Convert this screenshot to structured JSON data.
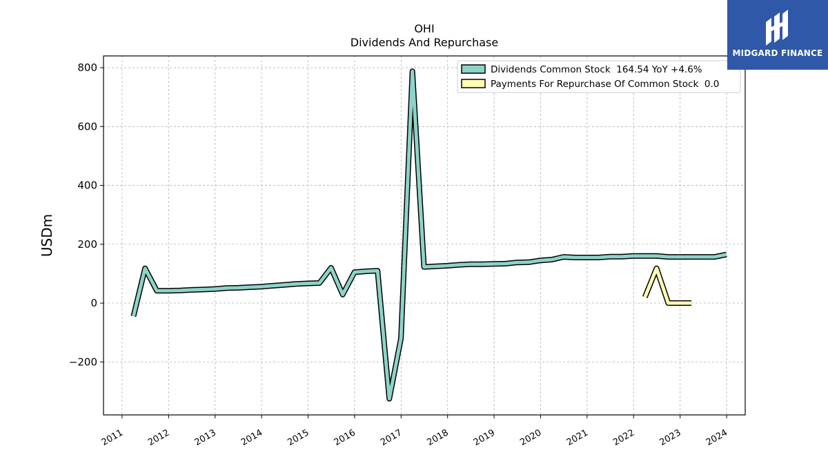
{
  "chart_data": {
    "type": "line",
    "title": "OHI",
    "subtitle": "Dividends And Repurchase",
    "ylabel": "USDm",
    "xlabel": "",
    "ylim": [
      -380,
      840
    ],
    "xlim": [
      2010.6,
      2024.4
    ],
    "yticks": [
      -200,
      0,
      200,
      400,
      600,
      800
    ],
    "ytick_labels": [
      "−200",
      "0",
      "200",
      "400",
      "600",
      "800"
    ],
    "xticks": [
      2011,
      2012,
      2013,
      2014,
      2015,
      2016,
      2017,
      2018,
      2019,
      2020,
      2021,
      2022,
      2023,
      2024
    ],
    "xtick_labels": [
      "2011",
      "2012",
      "2013",
      "2014",
      "2015",
      "2016",
      "2017",
      "2018",
      "2019",
      "2020",
      "2021",
      "2022",
      "2023",
      "2024"
    ],
    "grid": true,
    "legend_position": "top-right",
    "series": [
      {
        "name": "Dividends Common Stock  164.54 YoY +4.6%",
        "color": "#8dd3c7",
        "x": [
          "2011-03-31",
          "2011-06-30",
          "2011-09-30",
          "2011-12-31",
          "2012-03-31",
          "2012-06-30",
          "2012-09-30",
          "2012-12-31",
          "2013-03-31",
          "2013-06-30",
          "2013-09-30",
          "2013-12-31",
          "2014-03-31",
          "2014-06-30",
          "2014-09-30",
          "2014-12-31",
          "2015-03-31",
          "2015-06-30",
          "2015-09-30",
          "2015-12-31",
          "2016-03-31",
          "2016-06-30",
          "2016-09-30",
          "2016-12-31",
          "2017-03-31",
          "2017-06-30",
          "2017-09-30",
          "2017-12-31",
          "2018-03-31",
          "2018-06-30",
          "2018-09-30",
          "2018-12-31",
          "2019-03-31",
          "2019-06-30",
          "2019-09-30",
          "2019-12-31",
          "2020-03-31",
          "2020-06-30",
          "2020-09-30",
          "2020-12-31",
          "2021-03-31",
          "2021-06-30",
          "2021-09-30",
          "2021-12-31",
          "2022-03-31",
          "2022-06-30",
          "2022-09-30",
          "2022-12-31",
          "2023-03-31",
          "2023-06-30",
          "2023-09-30",
          "2023-12-31"
        ],
        "values": [
          -45,
          118,
          42,
          42,
          43,
          45,
          46,
          48,
          51,
          52,
          54,
          56,
          59,
          62,
          65,
          67,
          68,
          120,
          29,
          105,
          108,
          110,
          -325,
          -120,
          788,
          123,
          125,
          127,
          130,
          132,
          132,
          133,
          134,
          138,
          139,
          145,
          148,
          157,
          155,
          155,
          155,
          158,
          158,
          160,
          160,
          160,
          157,
          157,
          157,
          157,
          157,
          165
        ]
      },
      {
        "name": "Payments For Repurchase Of Common Stock  0.0",
        "color": "#ffffb3",
        "x": [
          "2022-03-31",
          "2022-06-30",
          "2022-09-30",
          "2022-12-31",
          "2023-03-31"
        ],
        "values": [
          20,
          118,
          0,
          0,
          0
        ]
      }
    ]
  },
  "logo": {
    "text": "MIDGARD FINANCE",
    "color": "#2f58a8"
  }
}
